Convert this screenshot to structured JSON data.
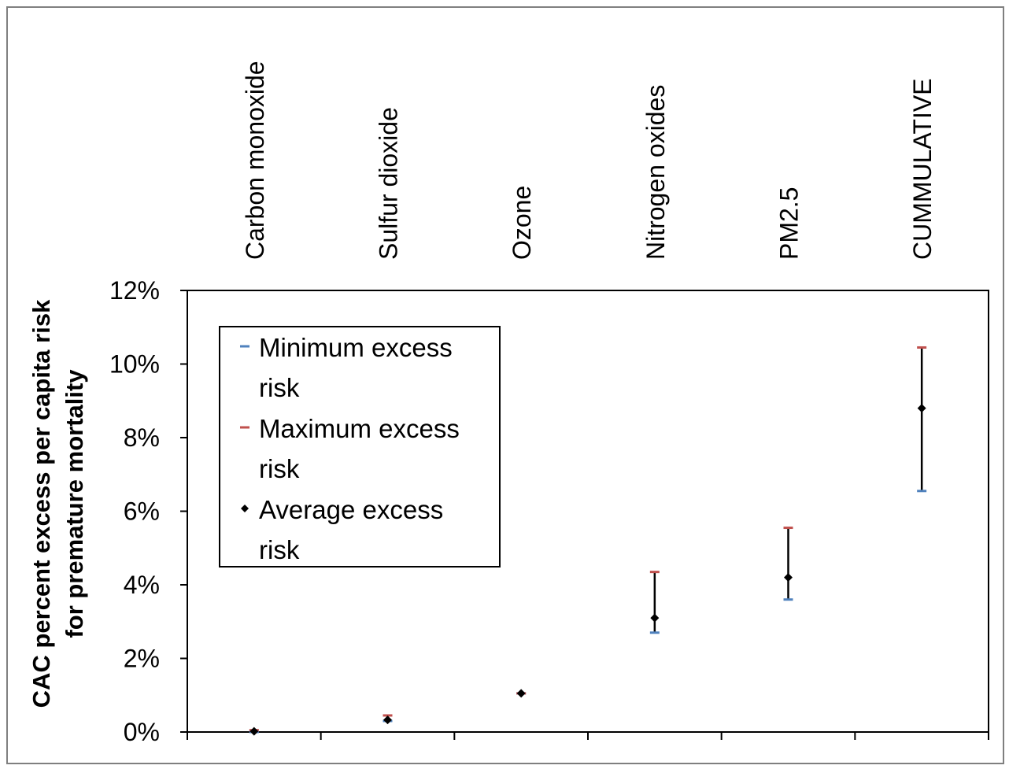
{
  "chart_data": {
    "type": "scatter",
    "categories": [
      "Carbon monoxide",
      "Sulfur dioxide",
      "Ozone",
      "Nitrogen oxides",
      "PM2.5",
      "CUMMULATIVE"
    ],
    "series": [
      {
        "name": "Minimum excess risk",
        "values": [
          0.0,
          0.3,
          1.05,
          2.7,
          3.6,
          6.55
        ],
        "color": "#4f81bd",
        "marker": "dash"
      },
      {
        "name": "Maximum excess risk",
        "values": [
          0.05,
          0.45,
          1.05,
          4.35,
          5.55,
          10.45
        ],
        "color": "#c0504d",
        "marker": "dash"
      },
      {
        "name": "Average excess risk",
        "values": [
          0.02,
          0.33,
          1.05,
          3.1,
          4.2,
          8.8
        ],
        "color": "#000000",
        "marker": "diamond"
      }
    ],
    "ylabel": "CAC percent excess per capita  risk for premature mortality",
    "xlabel": "",
    "ylim": [
      0,
      12
    ],
    "yticks": [
      0,
      2,
      4,
      6,
      8,
      10,
      12
    ],
    "ytick_labels": [
      "0%",
      "2%",
      "4%",
      "6%",
      "8%",
      "10%",
      "12%"
    ],
    "y_unit": "%",
    "error_bars": "minimum-to-maximum",
    "legend": {
      "position": "top-left",
      "entries": [
        {
          "line1": "Minimum excess",
          "line2": "risk"
        },
        {
          "line1": "Maximum excess",
          "line2": "risk"
        },
        {
          "line1": "Average excess",
          "line2": "risk"
        }
      ]
    },
    "grid": false,
    "category_labels_position": "top-rotated"
  },
  "ylabel_lines": [
    "CAC percent excess per capita  risk",
    "for premature mortality"
  ]
}
